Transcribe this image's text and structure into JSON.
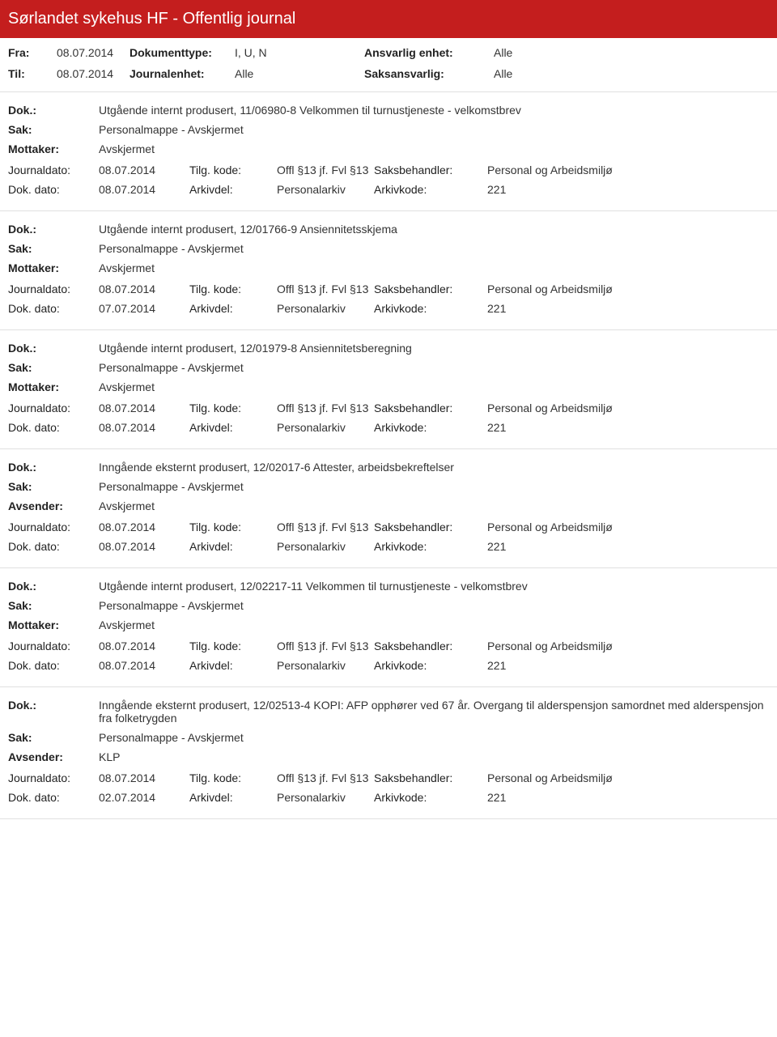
{
  "header": {
    "title": "Sørlandet sykehus HF - Offentlig journal"
  },
  "filters": {
    "fra_label": "Fra:",
    "fra_value": "08.07.2014",
    "til_label": "Til:",
    "til_value": "08.07.2014",
    "doktype_label": "Dokumenttype:",
    "doktype_value": "I, U, N",
    "journalenhet_label": "Journalenhet:",
    "journalenhet_value": "Alle",
    "ansvarlig_label": "Ansvarlig enhet:",
    "ansvarlig_value": "Alle",
    "saksansvarlig_label": "Saksansvarlig:",
    "saksansvarlig_value": "Alle"
  },
  "labels": {
    "dok": "Dok.:",
    "sak": "Sak:",
    "mottaker": "Mottaker:",
    "avsender": "Avsender:",
    "journaldato": "Journaldato:",
    "dokdato": "Dok. dato:",
    "tilgkode": "Tilg. kode:",
    "arkivdel": "Arkivdel:",
    "saksbehandler": "Saksbehandler:",
    "arkivkode": "Arkivkode:"
  },
  "entries": [
    {
      "dok": "Utgående internt produsert, 11/06980-8 Velkommen til turnustjeneste - velkomstbrev",
      "sak": "Personalmappe - Avskjermet",
      "party_label": "Mottaker:",
      "party_value": "Avskjermet",
      "journaldato": "08.07.2014",
      "dokdato": "08.07.2014",
      "tilgkode": "Offl §13 jf. Fvl §13",
      "arkivdel": "Personalarkiv",
      "saksbehandler": "Personal og Arbeidsmiljø",
      "arkivkode": "221"
    },
    {
      "dok": "Utgående internt produsert, 12/01766-9 Ansiennitetsskjema",
      "sak": "Personalmappe - Avskjermet",
      "party_label": "Mottaker:",
      "party_value": "Avskjermet",
      "journaldato": "08.07.2014",
      "dokdato": "07.07.2014",
      "tilgkode": "Offl §13 jf. Fvl §13",
      "arkivdel": "Personalarkiv",
      "saksbehandler": "Personal og Arbeidsmiljø",
      "arkivkode": "221"
    },
    {
      "dok": "Utgående internt produsert, 12/01979-8 Ansiennitetsberegning",
      "sak": "Personalmappe - Avskjermet",
      "party_label": "Mottaker:",
      "party_value": "Avskjermet",
      "journaldato": "08.07.2014",
      "dokdato": "08.07.2014",
      "tilgkode": "Offl §13 jf. Fvl §13",
      "arkivdel": "Personalarkiv",
      "saksbehandler": "Personal og Arbeidsmiljø",
      "arkivkode": "221"
    },
    {
      "dok": "Inngående eksternt produsert, 12/02017-6 Attester, arbeidsbekreftelser",
      "sak": "Personalmappe - Avskjermet",
      "party_label": "Avsender:",
      "party_value": "Avskjermet",
      "journaldato": "08.07.2014",
      "dokdato": "08.07.2014",
      "tilgkode": "Offl §13 jf. Fvl §13",
      "arkivdel": "Personalarkiv",
      "saksbehandler": "Personal og Arbeidsmiljø",
      "arkivkode": "221"
    },
    {
      "dok": "Utgående internt produsert, 12/02217-11 Velkommen til turnustjeneste - velkomstbrev",
      "sak": "Personalmappe - Avskjermet",
      "party_label": "Mottaker:",
      "party_value": "Avskjermet",
      "journaldato": "08.07.2014",
      "dokdato": "08.07.2014",
      "tilgkode": "Offl §13 jf. Fvl §13",
      "arkivdel": "Personalarkiv",
      "saksbehandler": "Personal og Arbeidsmiljø",
      "arkivkode": "221"
    },
    {
      "dok": "Inngående eksternt produsert, 12/02513-4 KOPI: AFP opphører ved 67 år. Overgang til alderspensjon samordnet med alderspensjon fra folketrygden",
      "sak": "Personalmappe - Avskjermet",
      "party_label": "Avsender:",
      "party_value": "KLP",
      "journaldato": "08.07.2014",
      "dokdato": "02.07.2014",
      "tilgkode": "Offl §13 jf. Fvl §13",
      "arkivdel": "Personalarkiv",
      "saksbehandler": "Personal og Arbeidsmiljø",
      "arkivkode": "221"
    }
  ]
}
